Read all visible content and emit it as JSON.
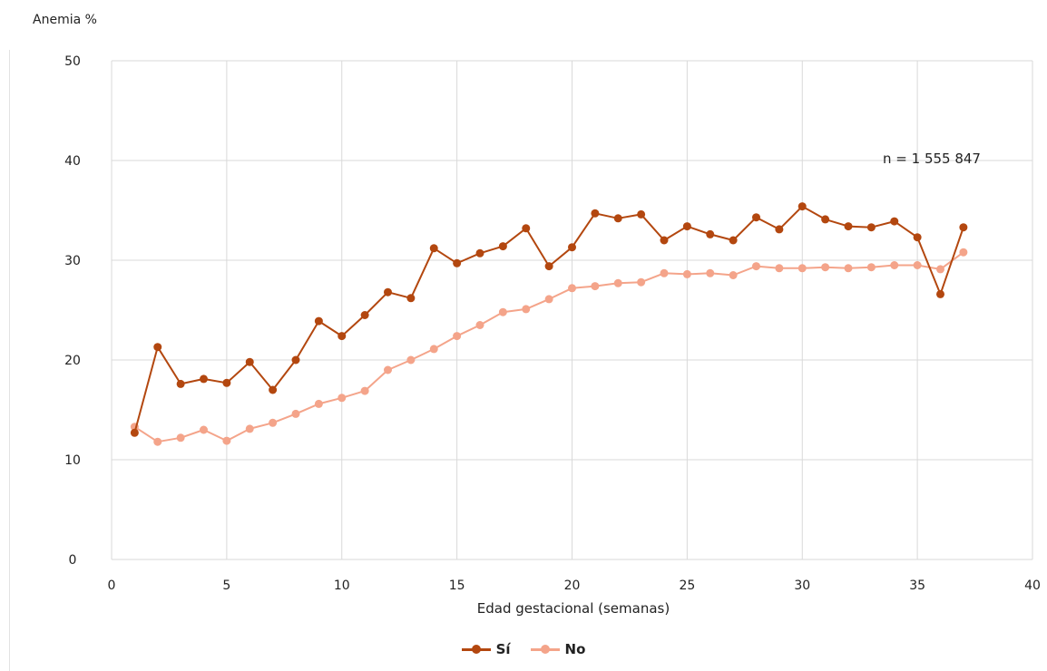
{
  "chart_data": {
    "type": "line",
    "ylabel": "Anemia %",
    "xlabel": "Edad gestacional (semanas)",
    "annotation": "n = 1 555 847",
    "xlim": [
      0,
      40
    ],
    "ylim": [
      0,
      50
    ],
    "x_ticks": [
      0,
      5,
      10,
      15,
      20,
      25,
      30,
      35,
      40
    ],
    "y_ticks": [
      0,
      10,
      20,
      30,
      40,
      50
    ],
    "grid": true,
    "legend_position": "bottom",
    "x": [
      1,
      2,
      3,
      4,
      5,
      6,
      7,
      8,
      9,
      10,
      11,
      12,
      13,
      14,
      15,
      16,
      17,
      18,
      19,
      20,
      21,
      22,
      23,
      24,
      25,
      26,
      27,
      28,
      29,
      30,
      31,
      32,
      33,
      34,
      35,
      36,
      37
    ],
    "series": [
      {
        "name": "Sí",
        "color": "#b3470f",
        "values": [
          12.7,
          21.3,
          17.6,
          18.1,
          17.7,
          19.8,
          17.0,
          20.0,
          23.9,
          22.4,
          24.5,
          26.8,
          26.2,
          31.2,
          29.7,
          30.7,
          31.4,
          33.2,
          29.4,
          31.3,
          34.7,
          34.2,
          34.6,
          32.0,
          33.4,
          32.6,
          32.0,
          34.3,
          33.1,
          35.4,
          34.1,
          33.4,
          33.3,
          33.9,
          32.3,
          26.6,
          33.3
        ]
      },
      {
        "name": "No",
        "color": "#f4a48a",
        "values": [
          13.3,
          11.8,
          12.2,
          13.0,
          11.9,
          13.1,
          13.7,
          14.6,
          15.6,
          16.2,
          16.9,
          19.0,
          20.0,
          21.1,
          22.4,
          23.5,
          24.8,
          25.1,
          26.1,
          27.2,
          27.4,
          27.7,
          27.8,
          28.7,
          28.6,
          28.7,
          28.5,
          29.4,
          29.2,
          29.2,
          29.3,
          29.2,
          29.3,
          29.5,
          29.5,
          29.1,
          30.8
        ]
      }
    ]
  }
}
